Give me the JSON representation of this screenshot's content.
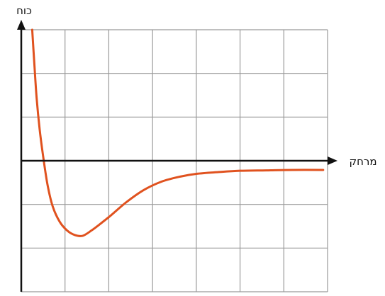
{
  "chart_data": {
    "type": "line",
    "title": "",
    "xlabel": "מרחק",
    "ylabel": "כוח",
    "grid": true,
    "xlim": [
      0,
      7
    ],
    "ylim": [
      -3,
      3
    ],
    "x_ticks": [
      0,
      1,
      2,
      3,
      4,
      5,
      6,
      7
    ],
    "y_ticks": [
      -3,
      -2,
      -1,
      0,
      1,
      2,
      3
    ],
    "series": [
      {
        "color": "#e0521f",
        "points": [
          [
            0.25,
            3.0
          ],
          [
            0.3,
            2.2
          ],
          [
            0.35,
            1.45
          ],
          [
            0.42,
            0.72
          ],
          [
            0.5,
            0.1
          ],
          [
            0.6,
            -0.55
          ],
          [
            0.72,
            -1.05
          ],
          [
            0.88,
            -1.4
          ],
          [
            1.05,
            -1.6
          ],
          [
            1.22,
            -1.7
          ],
          [
            1.4,
            -1.72
          ],
          [
            1.6,
            -1.6
          ],
          [
            1.8,
            -1.45
          ],
          [
            2.05,
            -1.25
          ],
          [
            2.4,
            -0.95
          ],
          [
            2.8,
            -0.67
          ],
          [
            3.2,
            -0.48
          ],
          [
            3.6,
            -0.37
          ],
          [
            4.0,
            -0.3
          ],
          [
            4.5,
            -0.26
          ],
          [
            5.0,
            -0.23
          ],
          [
            5.6,
            -0.22
          ],
          [
            6.2,
            -0.21
          ],
          [
            6.9,
            -0.21
          ]
        ]
      }
    ],
    "colors": {
      "axis": "#111111",
      "grid": "#9a9a9a",
      "curve": "#e0521f"
    }
  }
}
